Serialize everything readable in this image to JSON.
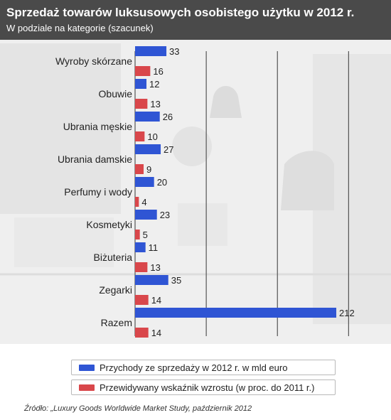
{
  "header": {
    "title": "Sprzedaż towarów luksusowych osobistego użytku w 2012 r.",
    "subtitle": "W podziale na kategorie (szacunek)"
  },
  "colors": {
    "header_bg": "#4a4a4a",
    "series_1": "#2f55d4",
    "series_2": "#d9474b",
    "gridline": "#555555",
    "text": "#222222"
  },
  "chart_data": {
    "type": "bar",
    "orientation": "horizontal",
    "categories": [
      "Wyroby skórzane",
      "Obuwie",
      "Ubrania męskie",
      "Ubrania damskie",
      "Perfumy i wody",
      "Kosmetyki",
      "Biżuteria",
      "Zegarki",
      "Razem"
    ],
    "series": [
      {
        "name": "Przychody ze sprzedaży w 2012 r. w mld euro",
        "values": [
          33,
          12,
          26,
          27,
          20,
          23,
          11,
          35,
          212
        ]
      },
      {
        "name": "Przewidywany wskaźnik wzrostu (w proc. do 2011 r.)",
        "values": [
          16,
          13,
          10,
          9,
          4,
          5,
          13,
          14,
          14
        ]
      }
    ],
    "xlim": [
      0,
      250
    ],
    "xticks": [
      0,
      75,
      150,
      225
    ],
    "grid": true,
    "legend": "bottom"
  },
  "source": "Źródło: „Luxury Goods Worldwide Market Study, październik 2012"
}
